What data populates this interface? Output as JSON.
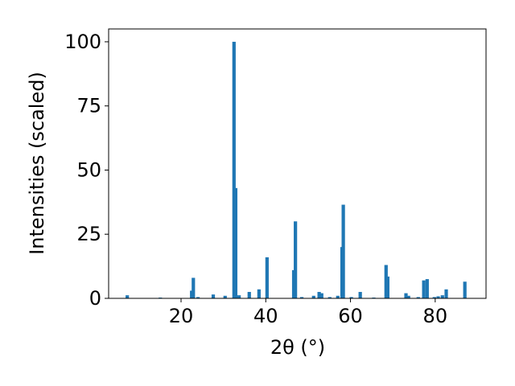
{
  "chart_data": {
    "type": "bar",
    "xlabel": "2θ (°)",
    "ylabel": "Intensities (scaled)",
    "x": [
      7.3,
      15.1,
      22.5,
      22.9,
      24.0,
      27.6,
      30.4,
      32.5,
      32.9,
      33.7,
      36.1,
      38.4,
      40.3,
      46.6,
      47.0,
      48.5,
      51.3,
      52.6,
      53.2,
      55.1,
      57.0,
      58.0,
      58.3,
      60.2,
      62.3,
      65.5,
      68.4,
      68.8,
      73.1,
      73.7,
      76.0,
      77.3,
      78.1,
      79.8,
      80.7,
      81.7,
      82.6,
      87.0
    ],
    "values": [
      1.2,
      0.3,
      3,
      8,
      0.5,
      1.5,
      1,
      100,
      43,
      1.2,
      2.5,
      3.5,
      16,
      11,
      30,
      0.5,
      1,
      2.5,
      2,
      0.5,
      1,
      20,
      36.5,
      0.5,
      2.5,
      0.3,
      13,
      8.5,
      2,
      1,
      0.5,
      7,
      7.5,
      0.5,
      0.8,
      1.2,
      3.5,
      6.5
    ],
    "color": "#1f77b4",
    "xlim": [
      2.9,
      92
    ],
    "ylim": [
      0,
      105
    ],
    "xticks": [
      20,
      40,
      60,
      80
    ],
    "yticks": [
      0,
      25,
      50,
      75,
      100
    ]
  }
}
